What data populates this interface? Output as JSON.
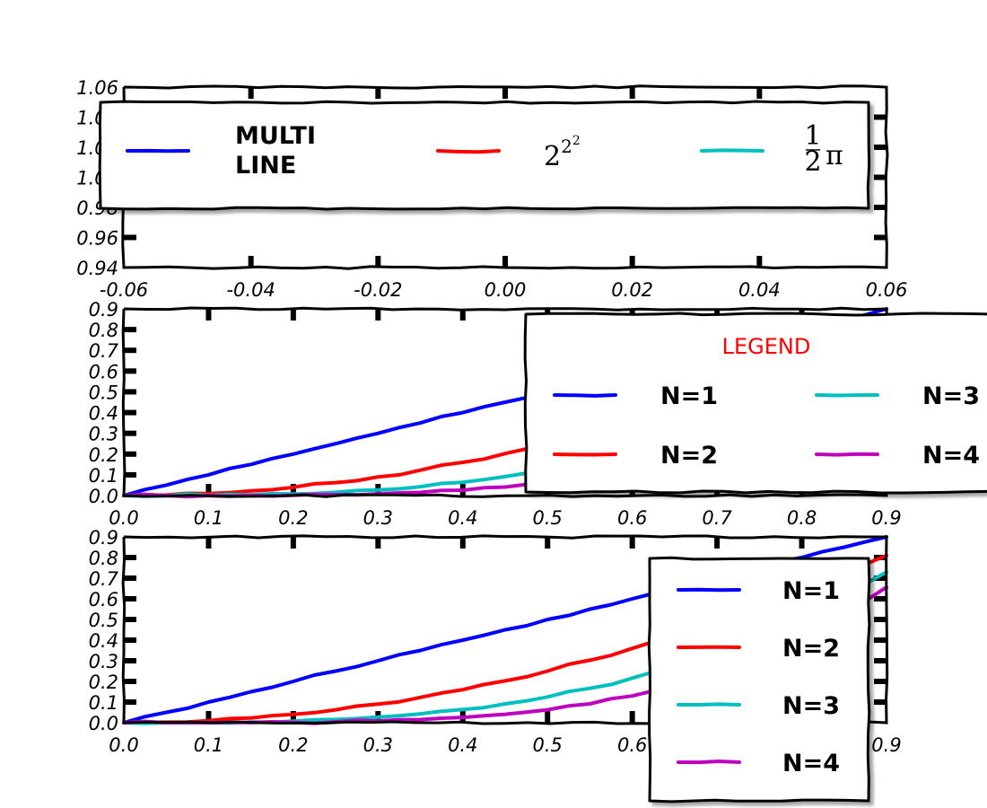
{
  "colors": {
    "blue": "#0000ff",
    "red": "#ff0000",
    "cyan": "#00bfbf",
    "magenta": "#bf00bf",
    "axis": "#000000"
  },
  "chart_data": [
    {
      "type": "line",
      "panel": "top",
      "xlim": [
        -0.06,
        0.06
      ],
      "ylim": [
        0.94,
        1.06
      ],
      "xticks": [
        "-0.06",
        "-0.04",
        "-0.02",
        "0.00",
        "0.02",
        "0.04",
        "0.06"
      ],
      "yticks": [
        "0.94",
        "0.96",
        "0.98",
        "1.00",
        "1.02",
        "1.04",
        "1.06"
      ],
      "series": [
        {
          "name": "MULTI\nLINE",
          "color": "blue",
          "values": []
        },
        {
          "name": "2^{2^{2}}",
          "color": "red",
          "values": []
        },
        {
          "name": "½π",
          "color": "cyan",
          "values": []
        }
      ],
      "legend": {
        "placement": "top",
        "columns": 3,
        "title": ""
      }
    },
    {
      "type": "line",
      "panel": "middle",
      "xlim": [
        0.0,
        0.9
      ],
      "ylim": [
        0.0,
        0.9
      ],
      "xticks": [
        "0.0",
        "0.1",
        "0.2",
        "0.3",
        "0.4",
        "0.5",
        "0.6",
        "0.7",
        "0.8",
        "0.9"
      ],
      "yticks": [
        "0.0",
        "0.1",
        "0.2",
        "0.3",
        "0.4",
        "0.5",
        "0.6",
        "0.7",
        "0.8",
        "0.9"
      ],
      "x": [
        0.0,
        0.05,
        0.1,
        0.15,
        0.2,
        0.25,
        0.3,
        0.35,
        0.4,
        0.45,
        0.5,
        0.55,
        0.6,
        0.65,
        0.7,
        0.75,
        0.8,
        0.85,
        0.9
      ],
      "series": [
        {
          "name": "N=1",
          "color": "blue",
          "values": [
            0.0,
            0.05,
            0.1,
            0.15,
            0.2,
            0.25,
            0.3,
            0.35,
            0.4,
            0.45,
            0.5,
            0.55,
            0.6,
            0.65,
            0.7,
            0.75,
            0.8,
            0.85,
            0.9
          ]
        },
        {
          "name": "N=2",
          "color": "red",
          "values": [
            0.0,
            0.0025,
            0.01,
            0.0225,
            0.04,
            0.0625,
            0.09,
            0.1225,
            0.16,
            0.2025,
            0.25,
            0.3025,
            0.36,
            0.4225,
            0.49,
            0.5625,
            0.64,
            0.7225,
            0.81
          ]
        },
        {
          "name": "N=3",
          "color": "cyan",
          "values": [
            0.0,
            0.0001,
            0.001,
            0.0034,
            0.008,
            0.0156,
            0.027,
            0.0429,
            0.064,
            0.0911,
            0.125,
            0.1664,
            0.216,
            0.2746,
            0.343,
            0.4219,
            0.512,
            0.6141,
            0.729
          ]
        },
        {
          "name": "N=4",
          "color": "magenta",
          "values": [
            0.0,
            0.0,
            0.0001,
            0.0005,
            0.0016,
            0.0039,
            0.0081,
            0.015,
            0.0256,
            0.041,
            0.0625,
            0.0915,
            0.1296,
            0.1785,
            0.2401,
            0.3164,
            0.4096,
            0.522,
            0.6561
          ]
        }
      ],
      "legend": {
        "placement": "upper-right",
        "columns": 2,
        "title": "LEGEND"
      }
    },
    {
      "type": "line",
      "panel": "bottom",
      "xlim": [
        0.0,
        0.9
      ],
      "ylim": [
        0.0,
        0.9
      ],
      "xticks": [
        "0.0",
        "0.1",
        "0.2",
        "0.3",
        "0.4",
        "0.5",
        "0.6",
        "0.7",
        "0.8",
        "0.9"
      ],
      "yticks": [
        "0.0",
        "0.1",
        "0.2",
        "0.3",
        "0.4",
        "0.5",
        "0.6",
        "0.7",
        "0.8",
        "0.9"
      ],
      "x": [
        0.0,
        0.05,
        0.1,
        0.15,
        0.2,
        0.25,
        0.3,
        0.35,
        0.4,
        0.45,
        0.5,
        0.55,
        0.6,
        0.65,
        0.7,
        0.75,
        0.8,
        0.85,
        0.9
      ],
      "series": [
        {
          "name": "N=1",
          "color": "blue",
          "values": [
            0.0,
            0.05,
            0.1,
            0.15,
            0.2,
            0.25,
            0.3,
            0.35,
            0.4,
            0.45,
            0.5,
            0.55,
            0.6,
            0.65,
            0.7,
            0.75,
            0.8,
            0.85,
            0.9
          ]
        },
        {
          "name": "N=2",
          "color": "red",
          "values": [
            0.0,
            0.0025,
            0.01,
            0.0225,
            0.04,
            0.0625,
            0.09,
            0.1225,
            0.16,
            0.2025,
            0.25,
            0.3025,
            0.36,
            0.4225,
            0.49,
            0.5625,
            0.64,
            0.7225,
            0.81
          ]
        },
        {
          "name": "N=3",
          "color": "cyan",
          "values": [
            0.0,
            0.0001,
            0.001,
            0.0034,
            0.008,
            0.0156,
            0.027,
            0.0429,
            0.064,
            0.0911,
            0.125,
            0.1664,
            0.216,
            0.2746,
            0.343,
            0.4219,
            0.512,
            0.6141,
            0.729
          ]
        },
        {
          "name": "N=4",
          "color": "magenta",
          "values": [
            0.0,
            0.0,
            0.0001,
            0.0005,
            0.0016,
            0.0039,
            0.0081,
            0.015,
            0.0256,
            0.041,
            0.0625,
            0.0915,
            0.1296,
            0.1785,
            0.2401,
            0.3164,
            0.4096,
            0.522,
            0.6561
          ]
        }
      ],
      "legend": {
        "placement": "lower-right",
        "columns": 1,
        "title": ""
      }
    }
  ]
}
